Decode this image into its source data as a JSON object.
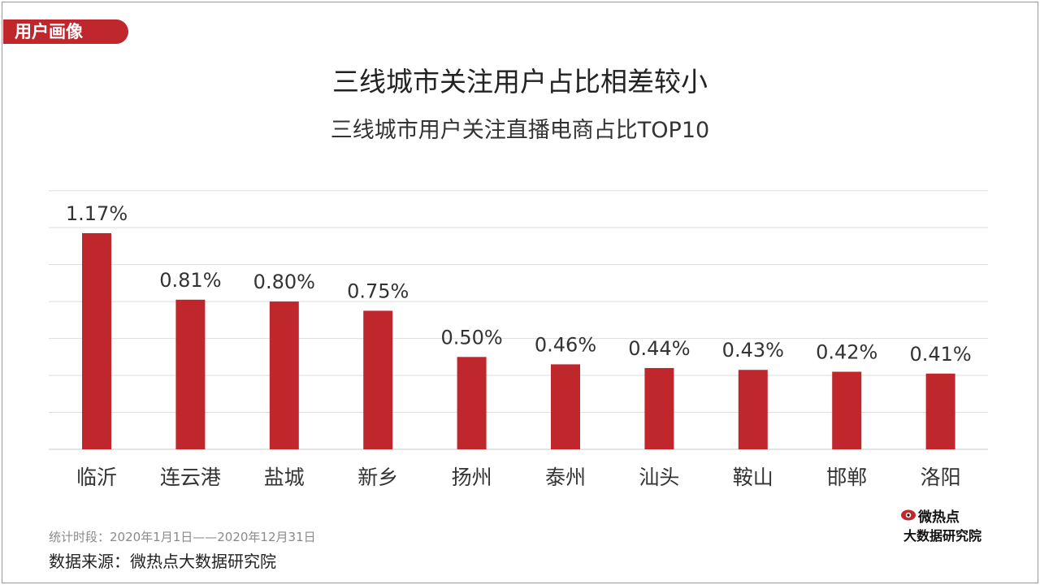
{
  "section_tag": "用户画像",
  "colors": {
    "accent": "#c0272d",
    "grid": "#dddddd",
    "text": "#333333"
  },
  "footer": {
    "period": "统计时段：2020年1月1日——2020年12月31日",
    "source": "数据来源：微热点大数据研究院"
  },
  "logo": {
    "top": "微热点",
    "bottom": "大数据研究院",
    "icon": "eye-logo-icon"
  },
  "chart_data": {
    "type": "bar",
    "title": "三线城市关注用户占比相差较小",
    "subtitle": "三线城市用户关注直播电商占比TOP10",
    "categories": [
      "临沂",
      "连云港",
      "盐城",
      "新乡",
      "扬州",
      "泰州",
      "汕头",
      "鞍山",
      "邯郸",
      "洛阳"
    ],
    "values": [
      1.17,
      0.81,
      0.8,
      0.75,
      0.5,
      0.46,
      0.44,
      0.43,
      0.42,
      0.41
    ],
    "value_labels": [
      "1.17%",
      "0.81%",
      "0.80%",
      "0.75%",
      "0.50%",
      "0.46%",
      "0.44%",
      "0.43%",
      "0.42%",
      "0.41%"
    ],
    "ylim": [
      0,
      1.4
    ],
    "grid": true,
    "grid_step": 0.2,
    "legend": "none"
  }
}
